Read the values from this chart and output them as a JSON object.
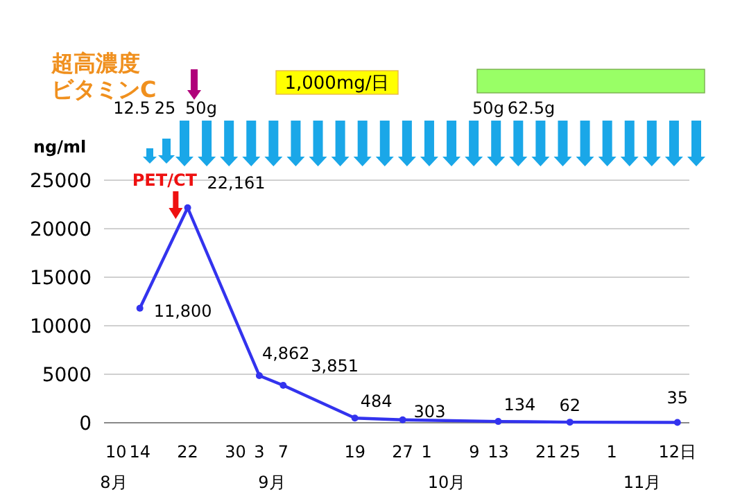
{
  "chart_data": {
    "type": "line",
    "ylabel": "ng/ml",
    "x": [
      "--08-14",
      "--08-22",
      "--09-03",
      "--09-07",
      "--09-19",
      "--09-27",
      "--10-13",
      "--10-25",
      "--11-12"
    ],
    "series": [
      {
        "color": "#3333ee",
        "values": [
          11800,
          22161,
          4862,
          3851,
          484,
          303,
          134,
          62,
          35
        ],
        "value_labels": [
          "11,800",
          "22,161",
          "4,862",
          "3,851",
          "484",
          "303",
          "134",
          "62",
          "35"
        ]
      }
    ],
    "xlim": [
      "--08-08",
      "--11-14"
    ],
    "xticks": [
      {
        "value": "--08-10",
        "label": "10"
      },
      {
        "value": "--08-14",
        "label": "14"
      },
      {
        "value": "--08-22",
        "label": "22"
      },
      {
        "value": "--08-30",
        "label": "30"
      },
      {
        "value": "--09-03",
        "label": "3"
      },
      {
        "value": "--09-07",
        "label": "7"
      },
      {
        "value": "--09-19",
        "label": "19"
      },
      {
        "value": "--09-27",
        "label": "27"
      },
      {
        "value": "--10-01",
        "label": "1"
      },
      {
        "value": "--10-09",
        "label": "9"
      },
      {
        "value": "--10-13",
        "label": "13"
      },
      {
        "value": "--10-21",
        "label": "21"
      },
      {
        "value": "--10-25",
        "label": "25"
      },
      {
        "value": "--11-01",
        "label": "1"
      },
      {
        "value": "--11-12",
        "label": "12日"
      }
    ],
    "ylim": [
      0,
      25000
    ],
    "yticks": [
      0,
      5000,
      10000,
      15000,
      20000,
      25000
    ],
    "grid": "y",
    "marker": "circle",
    "annotations": [
      "超高濃度",
      "ビタミンC",
      "12.5",
      "25",
      "50g",
      "50g",
      "62.5g",
      "1,000mg/日",
      {
        "text": "PET/CT",
        "x": "--08-20",
        "y": 21000
      },
      "8月",
      "9月",
      "10月",
      "11月"
    ]
  }
}
